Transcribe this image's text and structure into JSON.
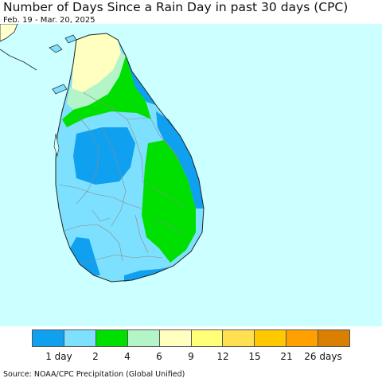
{
  "title": "Number of Days Since a Rain Day in past 30 days (CPC)",
  "subtitle": "Feb. 19 - Mar. 20, 2025",
  "source": "Source: NOAA/CPC Precipitation (Global Unified)",
  "colors": {
    "ocean": "#ccffff",
    "land_base": "#7ee0ff",
    "day1": "#10a0f0",
    "day4": "#00e000",
    "day6": "#b4f5c8",
    "day9": "#ffffc0",
    "mainland": "#ffffd0",
    "district_line": "#8a8a8a",
    "coast": "#222222"
  },
  "legend": {
    "colors": [
      "#10a0f0",
      "#7ee0ff",
      "#00e000",
      "#b4f5c8",
      "#ffffc0",
      "#ffff78",
      "#ffe050",
      "#ffc800",
      "#ffa000",
      "#d98000"
    ],
    "labels": [
      "1 day",
      "2",
      "4",
      "6",
      "9",
      "12",
      "15",
      "21",
      "26 days"
    ]
  }
}
